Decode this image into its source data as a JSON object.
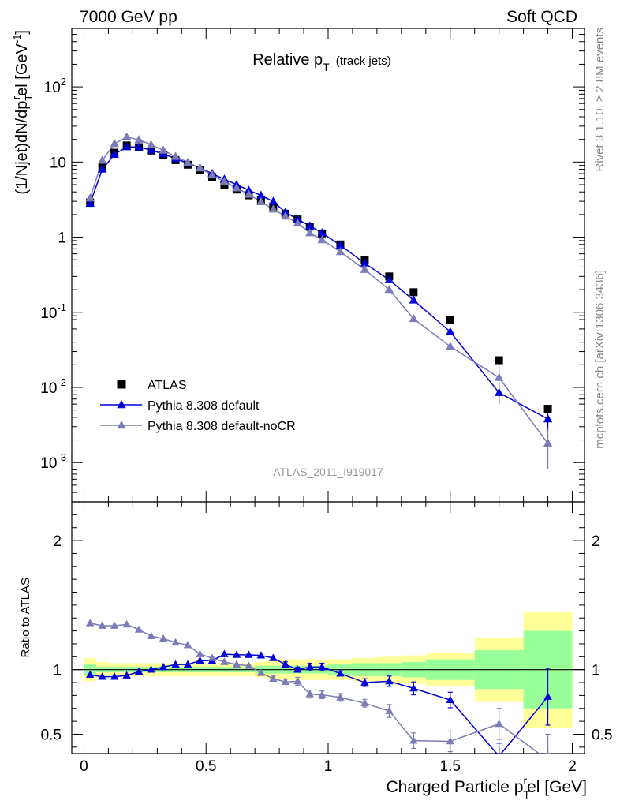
{
  "header": {
    "left": "7000 GeV pp",
    "right": "Soft QCD"
  },
  "side_labels": {
    "rivet": "Rivet 3.1.10, ≥ 2.8M events",
    "mcplots": "mcplots.cern.ch [arXiv:1306.3436]"
  },
  "plot_title": {
    "main": "Relative p",
    "sub": "T",
    "note": "(track jets)"
  },
  "analysis_id": "ATLAS_2011_I919017",
  "chart_data": [
    {
      "type": "scatter",
      "panel": "main",
      "ylabel": "(1/Njet)dN/dp_T^rel [GeV^-1]",
      "yscale": "log",
      "xlim": [
        -0.05,
        2.05
      ],
      "ylim": [
        0.0003,
        600
      ],
      "y_tick_labels": [
        "10^-3",
        "10^-2",
        "10^-1",
        "1",
        "10",
        "10^2"
      ],
      "legend": {
        "placement": "lower-left",
        "entries": [
          "ATLAS",
          "Pythia 8.308 default",
          "Pythia 8.308 default-noCR"
        ]
      },
      "x": [
        0.025,
        0.075,
        0.125,
        0.175,
        0.225,
        0.275,
        0.325,
        0.375,
        0.425,
        0.475,
        0.525,
        0.575,
        0.625,
        0.675,
        0.725,
        0.775,
        0.825,
        0.875,
        0.925,
        0.975,
        1.05,
        1.15,
        1.25,
        1.35,
        1.5,
        1.7,
        1.9
      ],
      "series": [
        {
          "name": "ATLAS",
          "color": "#000000",
          "marker": "square",
          "values": [
            2.9,
            8.4,
            13.3,
            16.6,
            15.7,
            14.2,
            12.4,
            10.6,
            9.2,
            7.8,
            6.3,
            5.0,
            4.3,
            3.6,
            3.1,
            2.55,
            2.05,
            1.72,
            1.38,
            1.12,
            0.8,
            0.5,
            0.3,
            0.185,
            0.08,
            0.023,
            0.0052
          ]
        },
        {
          "name": "Pythia 8.308 default",
          "color": "#0000dd",
          "marker": "triangle",
          "values": [
            2.8,
            8.0,
            12.6,
            15.9,
            15.8,
            14.4,
            12.8,
            11.1,
            9.6,
            8.4,
            7.0,
            5.9,
            5.0,
            4.2,
            3.6,
            2.98,
            2.15,
            1.73,
            1.41,
            1.14,
            0.78,
            0.45,
            0.27,
            0.145,
            0.055,
            0.0085,
            0.0038
          ]
        },
        {
          "name": "Pythia 8.308 default-noCR",
          "color": "#7b7bb5",
          "marker": "triangle",
          "values": [
            3.3,
            10.5,
            17.5,
            21.5,
            19.8,
            17.0,
            14.3,
            11.8,
            9.9,
            8.3,
            6.7,
            5.5,
            4.5,
            3.7,
            2.95,
            2.35,
            1.9,
            1.53,
            1.14,
            0.92,
            0.64,
            0.37,
            0.2,
            0.082,
            0.035,
            0.0135,
            0.0018
          ]
        }
      ]
    },
    {
      "type": "line",
      "panel": "ratio",
      "xlabel": "Charged Particle p_T^rel [GeV]",
      "ylabel": "Ratio to ATLAS",
      "xlim": [
        -0.05,
        2.05
      ],
      "ylim": [
        0.35,
        2.3
      ],
      "x_tick_labels": [
        "0",
        "0.5",
        "1",
        "1.5",
        "2"
      ],
      "y_tick_labels": [
        "0.5",
        "1",
        "2"
      ],
      "x": [
        0.025,
        0.075,
        0.125,
        0.175,
        0.225,
        0.275,
        0.325,
        0.375,
        0.425,
        0.475,
        0.525,
        0.575,
        0.625,
        0.675,
        0.725,
        0.775,
        0.825,
        0.875,
        0.925,
        0.975,
        1.05,
        1.15,
        1.25,
        1.35,
        1.5,
        1.7,
        1.9
      ],
      "uncertainty_bands": [
        {
          "x_edges": [
            0.0,
            0.05,
            0.1,
            0.15,
            0.2,
            0.25,
            0.3,
            0.35,
            0.4,
            0.45,
            0.5,
            0.55,
            0.6,
            0.65,
            0.7,
            0.75,
            0.8,
            0.85,
            0.9,
            0.95,
            1.0,
            1.1,
            1.2,
            1.3,
            1.4,
            1.6,
            1.8,
            2.0
          ],
          "yellow_half_width": [
            0.09,
            0.06,
            0.05,
            0.05,
            0.05,
            0.05,
            0.05,
            0.05,
            0.05,
            0.05,
            0.05,
            0.05,
            0.05,
            0.05,
            0.06,
            0.07,
            0.08,
            0.08,
            0.08,
            0.08,
            0.08,
            0.09,
            0.1,
            0.11,
            0.13,
            0.25,
            0.45
          ],
          "green_half_width": [
            0.04,
            0.02,
            0.02,
            0.02,
            0.02,
            0.02,
            0.02,
            0.02,
            0.02,
            0.02,
            0.02,
            0.02,
            0.02,
            0.02,
            0.03,
            0.03,
            0.03,
            0.03,
            0.03,
            0.03,
            0.04,
            0.05,
            0.05,
            0.06,
            0.08,
            0.15,
            0.3
          ],
          "colors": {
            "yellow": "#ffff99",
            "green": "#99ff99"
          }
        }
      ],
      "series": [
        {
          "name": "Pythia 8.308 default",
          "color": "#0000dd",
          "values": [
            0.96,
            0.945,
            0.945,
            0.955,
            0.985,
            1.0,
            1.02,
            1.04,
            1.04,
            1.07,
            1.07,
            1.12,
            1.115,
            1.115,
            1.11,
            1.09,
            1.04,
            1.0,
            1.02,
            1.02,
            0.97,
            0.9,
            0.91,
            0.855,
            0.765,
            0.33,
            0.79
          ],
          "errors": [
            0.01,
            0.01,
            0.01,
            0.01,
            0.01,
            0.01,
            0.01,
            0.01,
            0.01,
            0.01,
            0.01,
            0.01,
            0.01,
            0.01,
            0.01,
            0.01,
            0.02,
            0.02,
            0.03,
            0.03,
            0.02,
            0.03,
            0.04,
            0.05,
            0.06,
            0.1,
            0.22
          ]
        },
        {
          "name": "Pythia 8.308 default-noCR",
          "color": "#7b7bb5",
          "values": [
            1.36,
            1.34,
            1.34,
            1.35,
            1.31,
            1.26,
            1.24,
            1.21,
            1.19,
            1.12,
            1.09,
            1.06,
            1.04,
            1.03,
            0.975,
            0.93,
            0.905,
            0.91,
            0.81,
            0.805,
            0.785,
            0.74,
            0.68,
            0.45,
            0.445,
            0.58,
            0.3
          ],
          "errors": [
            0.01,
            0.01,
            0.01,
            0.01,
            0.01,
            0.01,
            0.01,
            0.01,
            0.01,
            0.01,
            0.01,
            0.01,
            0.01,
            0.01,
            0.01,
            0.02,
            0.02,
            0.03,
            0.03,
            0.03,
            0.03,
            0.03,
            0.05,
            0.06,
            0.08,
            0.12,
            0.2
          ]
        }
      ]
    }
  ]
}
